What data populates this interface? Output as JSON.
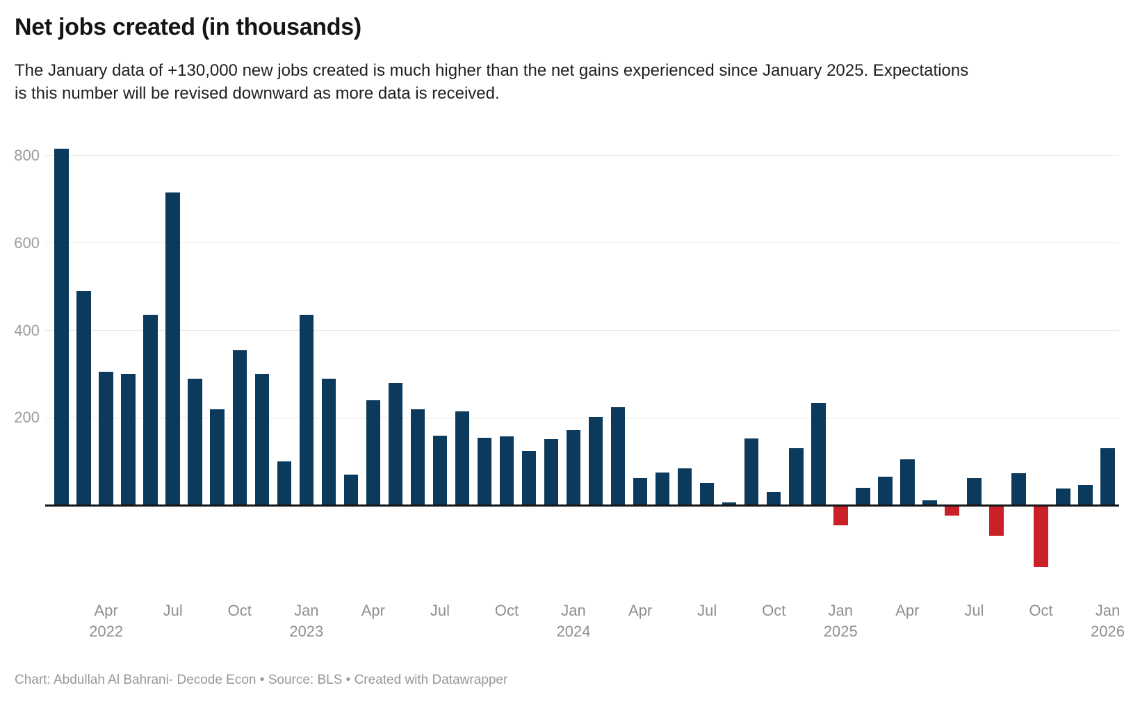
{
  "header": {
    "title": "Net jobs created (in thousands)",
    "subtitle_lines": {
      "0": "The January data of +130,000 new jobs created is much higher than the net gains experienced since January 2025. Expectations",
      "1": "is this number will be revised downward as more data is received."
    }
  },
  "footer": {
    "credit": "Chart: Abdullah Al Bahrani- Decode Econ • Source: BLS • Created with Datawrapper"
  },
  "chart_data": {
    "type": "bar",
    "title": "Net jobs created (in thousands)",
    "x": [
      "Feb 2022",
      "Mar 2022",
      "Apr 2022",
      "May 2022",
      "Jun 2022",
      "Jul 2022",
      "Aug 2022",
      "Sep 2022",
      "Oct 2022",
      "Nov 2022",
      "Dec 2022",
      "Jan 2023",
      "Feb 2023",
      "Mar 2023",
      "Apr 2023",
      "May 2023",
      "Jun 2023",
      "Jul 2023",
      "Aug 2023",
      "Sep 2023",
      "Oct 2023",
      "Nov 2023",
      "Dec 2023",
      "Jan 2024",
      "Feb 2024",
      "Mar 2024",
      "Apr 2024",
      "May 2024",
      "Jun 2024",
      "Jul 2024",
      "Aug 2024",
      "Sep 2024",
      "Oct 2024",
      "Nov 2024",
      "Dec 2024",
      "Jan 2025",
      "Feb 2025",
      "Mar 2025",
      "Apr 2025",
      "May 2025",
      "Jun 2025",
      "Jul 2025",
      "Aug 2025",
      "Sep 2025",
      "Oct 2025",
      "Nov 2025",
      "Dec 2025",
      "Jan 2026"
    ],
    "values": [
      815,
      490,
      305,
      300,
      435,
      715,
      290,
      220,
      355,
      300,
      100,
      435,
      290,
      70,
      240,
      280,
      220,
      160,
      215,
      155,
      158,
      125,
      152,
      172,
      202,
      225,
      63,
      75,
      85,
      51,
      7,
      153,
      31,
      131,
      234,
      -46,
      40,
      66,
      105,
      12,
      -23,
      62,
      -69,
      74,
      -141,
      38,
      46,
      130
    ],
    "units": "thousands of jobs",
    "ylim": [
      -160,
      860
    ],
    "yticks": [
      200,
      400,
      600,
      800
    ],
    "xticks": [
      {
        "label": "Apr",
        "year": "2022",
        "month_index": 2
      },
      {
        "label": "Jul",
        "month_index": 5
      },
      {
        "label": "Oct",
        "month_index": 8
      },
      {
        "label": "Jan",
        "year": "2023",
        "month_index": 11
      },
      {
        "label": "Apr",
        "month_index": 14
      },
      {
        "label": "Jul",
        "month_index": 17
      },
      {
        "label": "Oct",
        "month_index": 20
      },
      {
        "label": "Jan",
        "year": "2024",
        "month_index": 23
      },
      {
        "label": "Apr",
        "month_index": 26
      },
      {
        "label": "Jul",
        "month_index": 29
      },
      {
        "label": "Oct",
        "month_index": 32
      },
      {
        "label": "Jan",
        "year": "2025",
        "month_index": 35
      },
      {
        "label": "Apr",
        "month_index": 38
      },
      {
        "label": "Jul",
        "month_index": 41
      },
      {
        "label": "Oct",
        "month_index": 44
      },
      {
        "label": "Jan",
        "year": "2026",
        "month_index": 47
      }
    ],
    "grid": "horizontal",
    "legend": "none",
    "positive_color": "#0b3a5c",
    "negative_color": "#c92127",
    "gridline_color": "#e7e7e7",
    "axis_color": "#161616",
    "tick_label_color": "#8f8f8f"
  }
}
